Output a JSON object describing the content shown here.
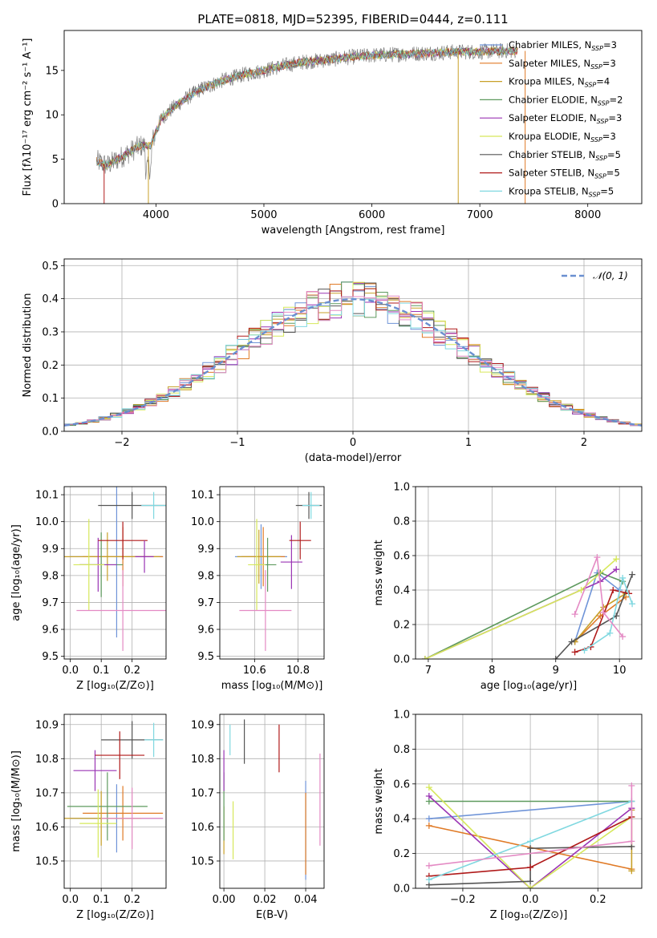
{
  "figure_title": "PLATE=0818, MJD=52395, FIBERID=0444, z=0.111",
  "models": [
    {
      "name": "Chabrier MILES",
      "n": "3",
      "color": "#6f94d8"
    },
    {
      "name": "Salpeter MILES",
      "n": "3",
      "color": "#e07a26"
    },
    {
      "name": "Kroupa MILES",
      "n": "4",
      "color": "#c8a028"
    },
    {
      "name": "Chabrier ELODIE",
      "n": "2",
      "color": "#5e9a5e"
    },
    {
      "name": "Salpeter ELODIE",
      "n": "3",
      "color": "#9a34b4"
    },
    {
      "name": "Kroupa ELODIE",
      "n": "3",
      "color": "#d6e85a"
    },
    {
      "name": "Chabrier STELIB",
      "n": "5",
      "color": "#555555"
    },
    {
      "name": "Salpeter STELIB",
      "n": "5",
      "color": "#b01a1a"
    },
    {
      "name": "Kroupa STELIB",
      "n": "5",
      "color": "#80d8e0"
    }
  ],
  "nssp_label": "N",
  "nssp_sub": "SSP",
  "chart_data": [
    {
      "id": "spectrum",
      "type": "line",
      "xlabel": "wavelength [Angstrom, rest frame]",
      "ylabel": "Flux [fλ10⁻¹⁷ erg cm⁻² s⁻¹ A⁻¹]",
      "xlim": [
        3150,
        8500
      ],
      "ylim": [
        0,
        19.5
      ],
      "xticks": [
        4000,
        5000,
        6000,
        7000,
        8000
      ],
      "yticks": [
        0,
        5,
        10,
        15
      ],
      "legend": "right",
      "continuum": {
        "x": [
          3450,
          3550,
          3700,
          3850,
          3950,
          4050,
          4200,
          4400,
          4600,
          4800,
          5000,
          5200,
          5400,
          5600,
          5800,
          6000,
          6200,
          6400,
          6600,
          6800,
          7000,
          7200,
          7400,
          7600,
          7800,
          8000,
          8200,
          8450
        ],
        "y": [
          4.8,
          4.3,
          5.4,
          6.5,
          6.5,
          9.6,
          11.2,
          12.8,
          13.8,
          14.5,
          15.0,
          15.6,
          16.0,
          16.2,
          16.5,
          16.7,
          16.8,
          16.9,
          17.0,
          17.1,
          17.1,
          17.2,
          17.2,
          17.2,
          17.2,
          17.2,
          17.2,
          17.2
        ]
      },
      "model_end_x": 7350
    },
    {
      "id": "residual-hist",
      "type": "histogram",
      "xlabel": "(data-model)/error",
      "ylabel": "Normed distribution",
      "xlim": [
        -2.5,
        2.5
      ],
      "ylim": [
        0,
        0.52
      ],
      "xticks": [
        -2,
        -1,
        0,
        1,
        2
      ],
      "yticks": [
        0.0,
        0.1,
        0.2,
        0.3,
        0.4,
        0.5
      ],
      "bin_width": 0.1,
      "reference_label": "𝒩(0, 1)",
      "reference_color": "#6a8fd0",
      "grid": true
    },
    {
      "id": "age-vs-Z",
      "type": "errorbar",
      "xlabel": "Z [log₁₀(Z/Z⊙)]",
      "ylabel": "age  [log₁₀(age/yr)]",
      "xlim": [
        -0.02,
        0.31
      ],
      "ylim": [
        9.49,
        10.13
      ],
      "xticks": [
        0.0,
        0.1,
        0.2
      ],
      "yticks": [
        9.5,
        9.6,
        9.7,
        9.8,
        9.9,
        10.0,
        10.1
      ],
      "points": [
        {
          "x": 0.15,
          "y": 9.87,
          "xerr": 0.15,
          "yerr": 0.3
        },
        {
          "x": 0.17,
          "y": 9.87,
          "xerr": 0.13,
          "yerr": 0.11
        },
        {
          "x": 0.12,
          "y": 9.87,
          "xerr": 0.17,
          "yerr": 0.09
        },
        {
          "x": 0.1,
          "y": 9.84,
          "xerr": 0.07,
          "yerr": 0.12
        },
        {
          "x": 0.09,
          "y": 9.84,
          "xerr": 0.06,
          "yerr": 0.1
        },
        {
          "x": 0.06,
          "y": 9.84,
          "xerr": 0.05,
          "yerr": 0.17
        },
        {
          "x": 0.2,
          "y": 10.06,
          "xerr": 0.11,
          "yerr": 0.05
        },
        {
          "x": 0.17,
          "y": 9.93,
          "xerr": 0.08,
          "yerr": 0.07
        },
        {
          "x": 0.27,
          "y": 10.06,
          "xerr": 0.04,
          "yerr": 0.05
        }
      ],
      "extra_points": [
        {
          "x": 0.17,
          "y": 9.67,
          "xerr": 0.15,
          "yerr": 0.15,
          "color": "#e48ac4"
        },
        {
          "x": 0.24,
          "y": 9.87,
          "xerr": 0.03,
          "yerr": 0.06,
          "color": "#9a34b4"
        }
      ]
    },
    {
      "id": "age-vs-mass",
      "type": "errorbar",
      "xlabel": "mass [log₁₀(M/M⊙)]",
      "xlim": [
        10.44,
        10.92
      ],
      "ylim": [
        9.49,
        10.13
      ],
      "xticks": [
        10.6,
        10.8
      ],
      "yticks": [
        9.5,
        9.6,
        9.7,
        9.8,
        9.9,
        10.0,
        10.1
      ],
      "points": [
        {
          "x": 10.63,
          "y": 9.87,
          "xerr": 0.12,
          "yerr": 0.12
        },
        {
          "x": 10.64,
          "y": 9.87,
          "xerr": 0.1,
          "yerr": 0.11
        },
        {
          "x": 10.62,
          "y": 9.87,
          "xerr": 0.1,
          "yerr": 0.1
        },
        {
          "x": 10.66,
          "y": 9.84,
          "xerr": 0.04,
          "yerr": 0.1
        },
        {
          "x": 10.77,
          "y": 9.85,
          "xerr": 0.05,
          "yerr": 0.1
        },
        {
          "x": 10.61,
          "y": 9.84,
          "xerr": 0.04,
          "yerr": 0.17
        },
        {
          "x": 10.85,
          "y": 10.06,
          "xerr": 0.06,
          "yerr": 0.05
        },
        {
          "x": 10.81,
          "y": 9.93,
          "xerr": 0.05,
          "yerr": 0.07
        },
        {
          "x": 10.86,
          "y": 10.06,
          "xerr": 0.04,
          "yerr": 0.05
        }
      ],
      "extra_points": [
        {
          "x": 10.65,
          "y": 9.67,
          "xerr": 0.12,
          "yerr": 0.15,
          "color": "#e48ac4"
        }
      ]
    },
    {
      "id": "weight-vs-age",
      "type": "line",
      "xlabel": "age  [log₁₀(age/yr)]",
      "ylabel": "mass weight",
      "xlim": [
        6.8,
        10.35
      ],
      "ylim": [
        0,
        1.0
      ],
      "xticks": [
        7,
        8,
        9,
        10
      ],
      "yticks": [
        0.0,
        0.2,
        0.4,
        0.6,
        0.8,
        1.0
      ],
      "grid": true,
      "series": [
        {
          "x": [
            9.3,
            9.65,
            10.0
          ],
          "y": [
            0.1,
            0.5,
            0.4
          ]
        },
        {
          "x": [
            9.3,
            9.7,
            10.1
          ],
          "y": [
            0.1,
            0.25,
            0.36
          ]
        },
        {
          "x": [
            9.3,
            9.75,
            10.1
          ],
          "y": [
            0.1,
            0.3,
            0.38
          ]
        },
        {
          "x": [
            6.95,
            9.7,
            10.05
          ],
          "y": [
            0.0,
            0.5,
            0.45
          ]
        },
        {
          "x": [
            6.95,
            9.7,
            9.95
          ],
          "y": [
            0.0,
            0.45,
            0.52
          ]
        },
        {
          "x": [
            6.95,
            9.4,
            9.95
          ],
          "y": [
            0.0,
            0.4,
            0.58
          ]
        },
        {
          "x": [
            9.0,
            9.25,
            9.95,
            10.2
          ],
          "y": [
            0.0,
            0.1,
            0.25,
            0.49
          ]
        },
        {
          "x": [
            9.3,
            9.55,
            9.9,
            10.15
          ],
          "y": [
            0.04,
            0.07,
            0.4,
            0.38
          ]
        },
        {
          "x": [
            9.45,
            9.85,
            10.05,
            10.2
          ],
          "y": [
            0.05,
            0.15,
            0.47,
            0.32
          ]
        }
      ],
      "extra_series": [
        {
          "x": [
            9.3,
            9.65,
            9.75,
            10.05
          ],
          "y": [
            0.26,
            0.59,
            0.27,
            0.13
          ],
          "color": "#e48ac4"
        }
      ]
    },
    {
      "id": "mass-vs-Z",
      "type": "errorbar",
      "xlabel": "Z [log₁₀(Z/Z⊙)]",
      "ylabel": "mass [log₁₀(M/M⊙)]",
      "xlim": [
        -0.02,
        0.31
      ],
      "ylim": [
        10.42,
        10.93
      ],
      "xticks": [
        0.0,
        0.1,
        0.2
      ],
      "yticks": [
        10.5,
        10.6,
        10.7,
        10.8,
        10.9
      ],
      "points": [
        {
          "x": 0.15,
          "y": 10.625,
          "xerr": 0.15,
          "yerr": 0.1
        },
        {
          "x": 0.17,
          "y": 10.64,
          "xerr": 0.13,
          "yerr": 0.08
        },
        {
          "x": 0.1,
          "y": 10.625,
          "xerr": 0.13,
          "yerr": 0.08
        },
        {
          "x": 0.12,
          "y": 10.66,
          "xerr": 0.13,
          "yerr": 0.1
        },
        {
          "x": 0.08,
          "y": 10.765,
          "xerr": 0.07,
          "yerr": 0.06
        },
        {
          "x": 0.09,
          "y": 10.61,
          "xerr": 0.06,
          "yerr": 0.1
        },
        {
          "x": 0.2,
          "y": 10.855,
          "xerr": 0.1,
          "yerr": 0.055
        },
        {
          "x": 0.16,
          "y": 10.81,
          "xerr": 0.08,
          "yerr": 0.07
        },
        {
          "x": 0.27,
          "y": 10.855,
          "xerr": 0.03,
          "yerr": 0.05
        }
      ],
      "extra_points": [
        {
          "x": 0.2,
          "y": 10.625,
          "xerr": 0.1,
          "yerr": 0.09,
          "color": "#e48ac4"
        }
      ]
    },
    {
      "id": "mass-vs-ebv",
      "type": "errorbar",
      "xlabel": "E(B-V)",
      "xlim": [
        -0.002,
        0.049
      ],
      "ylim": [
        10.42,
        10.93
      ],
      "xticks": [
        0.0,
        0.02,
        0.04
      ],
      "yticks": [
        10.5,
        10.6,
        10.7,
        10.8,
        10.9
      ],
      "points": [
        {
          "x": 0.04,
          "y": 10.59,
          "xerr": 0,
          "yerr": 0.145
        },
        {
          "x": 0.04,
          "y": 10.58,
          "xerr": 0,
          "yerr": 0.12
        },
        {
          "x": 0.0,
          "y": 10.59,
          "xerr": 0,
          "yerr": 0.07
        },
        {
          "x": 0.0,
          "y": 10.66,
          "xerr": 0,
          "yerr": 0.1
        },
        {
          "x": 0.0,
          "y": 10.765,
          "xerr": 0,
          "yerr": 0.06
        },
        {
          "x": 0.0045,
          "y": 10.59,
          "xerr": 0,
          "yerr": 0.085
        },
        {
          "x": 0.01,
          "y": 10.85,
          "xerr": 0,
          "yerr": 0.065
        },
        {
          "x": 0.027,
          "y": 10.83,
          "xerr": 0,
          "yerr": 0.07
        },
        {
          "x": 0.003,
          "y": 10.855,
          "xerr": 0,
          "yerr": 0.045
        }
      ],
      "extra_points": [
        {
          "x": 0.047,
          "y": 10.68,
          "xerr": 0,
          "yerr": 0.135,
          "color": "#e48ac4"
        }
      ]
    },
    {
      "id": "weight-vs-Z",
      "type": "line",
      "xlabel": "Z [log₁₀(Z/Z⊙)]",
      "ylabel": "mass weight",
      "xlim": [
        -0.34,
        0.33
      ],
      "ylim": [
        0,
        1.0
      ],
      "xticks": [
        -0.2,
        0.0,
        0.2
      ],
      "yticks": [
        0.0,
        0.2,
        0.4,
        0.6,
        0.8,
        1.0
      ],
      "grid": true,
      "series": [
        {
          "x": [
            -0.3,
            0.3
          ],
          "y": [
            0.4,
            0.5
          ]
        },
        {
          "x": [
            -0.3,
            0.3
          ],
          "y": [
            0.36,
            0.11
          ]
        },
        {
          "x": [
            0.3,
            0.3
          ],
          "y": [
            0.1,
            0.45
          ]
        },
        {
          "x": [
            -0.3,
            0.3
          ],
          "y": [
            0.5,
            0.5
          ]
        },
        {
          "x": [
            -0.3,
            0.0,
            0.3
          ],
          "y": [
            0.53,
            0.0,
            0.46
          ]
        },
        {
          "x": [
            -0.3,
            0.0,
            0.3
          ],
          "y": [
            0.58,
            0.0,
            0.41
          ]
        },
        {
          "x": [
            -0.3,
            0.0,
            0.0,
            0.3
          ],
          "y": [
            0.02,
            0.04,
            0.23,
            0.24
          ]
        },
        {
          "x": [
            -0.3,
            0.0,
            0.3
          ],
          "y": [
            0.07,
            0.12,
            0.41
          ]
        },
        {
          "x": [
            -0.3,
            0.0,
            0.3
          ],
          "y": [
            0.05,
            0.27,
            0.5
          ]
        }
      ],
      "extra_series": [
        {
          "x": [
            -0.3,
            0.3,
            0.3
          ],
          "y": [
            0.13,
            0.27,
            0.59
          ],
          "color": "#e48ac4"
        }
      ]
    }
  ]
}
